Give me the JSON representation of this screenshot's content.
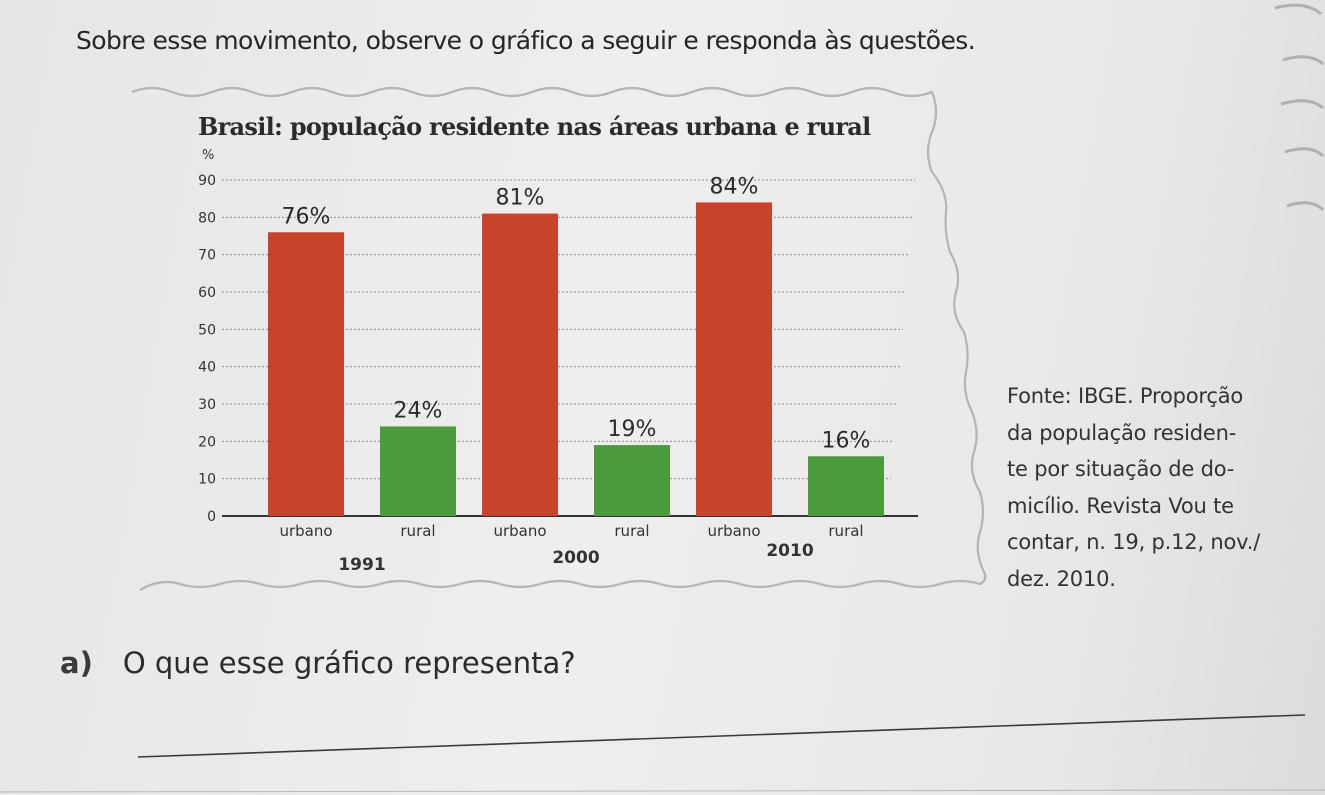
{
  "intro_text": "Sobre esse movimento, observe o gráfico a seguir e responda às questões.",
  "chart_data": {
    "type": "bar",
    "title": "Brasil: população residente nas áreas urbana e rural",
    "y_unit": "%",
    "ylim": [
      0,
      90
    ],
    "y_ticks": [
      0,
      10,
      20,
      30,
      40,
      50,
      60,
      70,
      80,
      90
    ],
    "grid": true,
    "groups": [
      {
        "year": "1991",
        "bars": [
          {
            "category": "urbano",
            "value": 76,
            "label": "76%"
          },
          {
            "category": "rural",
            "value": 24,
            "label": "24%"
          }
        ]
      },
      {
        "year": "2000",
        "bars": [
          {
            "category": "urbano",
            "value": 81,
            "label": "81%"
          },
          {
            "category": "rural",
            "value": 19,
            "label": "19%"
          }
        ]
      },
      {
        "year": "2010",
        "bars": [
          {
            "category": "urbano",
            "value": 84,
            "label": "84%"
          },
          {
            "category": "rural",
            "value": 16,
            "label": "16%"
          }
        ]
      }
    ],
    "colors": {
      "urbano": "#c8432b",
      "rural": "#4c9a3e"
    }
  },
  "source": {
    "lines": [
      "Fonte: IBGE. Proporção",
      "da população residen-",
      "te por situação de do-",
      "micílio. Revista Vou te",
      "contar, n. 19, p.12, nov./",
      "dez. 2010."
    ]
  },
  "question": {
    "letter": "a)",
    "text": "O que esse gráfico representa?"
  }
}
